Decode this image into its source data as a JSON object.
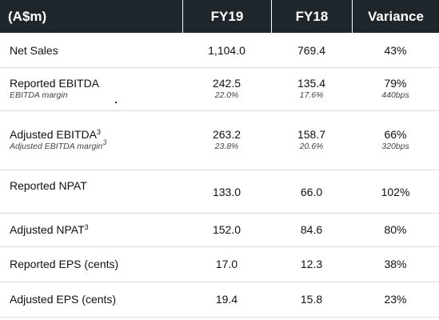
{
  "header": {
    "col0": "(A$m)",
    "col1": "FY19",
    "col2": "FY18",
    "col3": "Variance"
  },
  "rows": [
    {
      "label": "Net Sales",
      "fy19": "1,104.0",
      "fy18": "769.4",
      "variance": "43%"
    },
    {
      "label": "Reported EBITDA",
      "sublabel": "EBITDA margin",
      "fy19": "242.5",
      "fy19_sub": "22.0%",
      "fy18": "135.4",
      "fy18_sub": "17.6%",
      "variance": "79%",
      "variance_sub": "440bps"
    },
    {
      "label": "Adjusted EBITDA",
      "label_sup": "3",
      "sublabel": "Adjusted EBITDA margin",
      "sublabel_sup": "3",
      "fy19": "263.2",
      "fy19_sub": "23.8%",
      "fy18": "158.7",
      "fy18_sub": "20.6%",
      "variance": "66%",
      "variance_sub": "320bps"
    },
    {
      "label": "Reported NPAT",
      "fy19": "133.0",
      "fy18": "66.0",
      "variance": "102%"
    },
    {
      "label": "Adjusted NPAT",
      "label_sup": "3",
      "fy19": "152.0",
      "fy18": "84.6",
      "variance": "80%"
    },
    {
      "label": "Reported EPS (cents)",
      "fy19": "17.0",
      "fy18": "12.3",
      "variance": "38%"
    },
    {
      "label": "Adjusted EPS (cents)",
      "fy19": "19.4",
      "fy18": "15.8",
      "variance": "23%"
    }
  ]
}
